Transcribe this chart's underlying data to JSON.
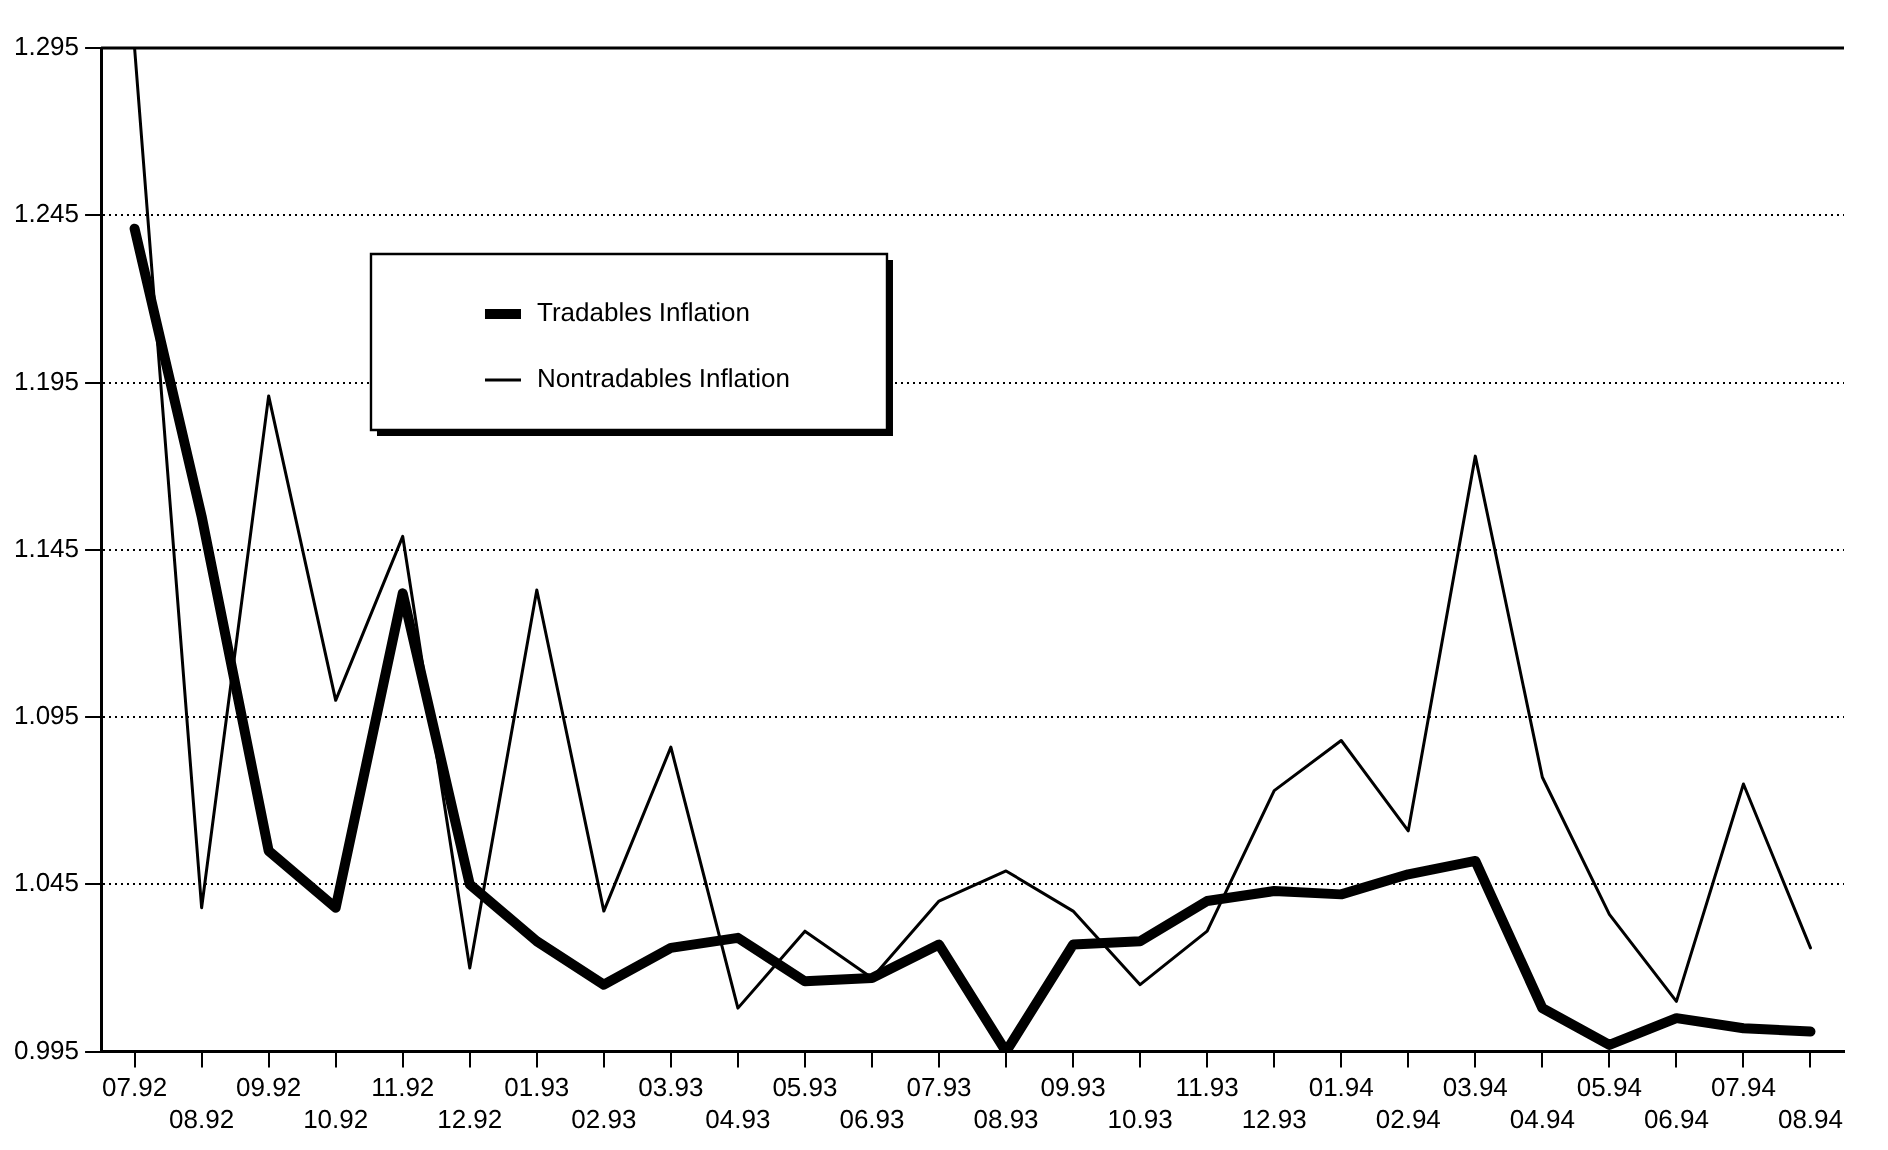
{
  "chart_data": {
    "type": "line",
    "categories": [
      "07.92",
      "08.92",
      "09.92",
      "10.92",
      "11.92",
      "12.92",
      "01.93",
      "02.93",
      "03.93",
      "04.93",
      "05.93",
      "06.93",
      "07.93",
      "08.93",
      "09.93",
      "10.93",
      "11.93",
      "12.93",
      "01.94",
      "02.94",
      "03.94",
      "04.94",
      "05.94",
      "06.94",
      "07.94",
      "08.94"
    ],
    "series": [
      {
        "name": "Tradables Inflation",
        "color": "#000000",
        "values": [
          1.241,
          1.155,
          1.055,
          1.038,
          1.132,
          1.045,
          1.028,
          1.015,
          1.026,
          1.029,
          1.016,
          1.017,
          1.027,
          0.995,
          1.027,
          1.028,
          1.04,
          1.043,
          1.042,
          1.048,
          1.052,
          1.008,
          0.997,
          1.005,
          1.002,
          1.001
        ]
      },
      {
        "name": "Nontradables Inflation",
        "color": "#000000",
        "values": [
          1.295,
          1.038,
          1.191,
          1.1,
          1.149,
          1.02,
          1.133,
          1.037,
          1.086,
          1.008,
          1.031,
          1.017,
          1.04,
          1.049,
          1.037,
          1.015,
          1.031,
          1.073,
          1.088,
          1.061,
          1.173,
          1.077,
          1.036,
          1.01,
          1.075,
          1.026
        ]
      }
    ],
    "ylim": [
      0.995,
      1.295
    ],
    "yticks": [
      0.995,
      1.045,
      1.095,
      1.145,
      1.195,
      1.245,
      1.295
    ],
    "grid": "y",
    "legend": "top",
    "marker": "none",
    "line_style": "solid"
  }
}
